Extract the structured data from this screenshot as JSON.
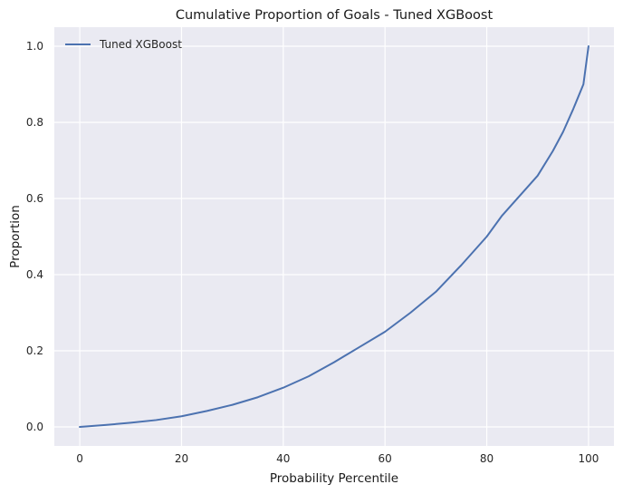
{
  "chart_data": {
    "type": "line",
    "title": "Cumulative Proportion of Goals - Tuned XGBoost",
    "xlabel": "Probability Percentile",
    "ylabel": "Proportion",
    "xlim": [
      -5,
      105
    ],
    "ylim": [
      -0.05,
      1.05
    ],
    "xticks": [
      0,
      20,
      40,
      60,
      80,
      100
    ],
    "yticks": [
      0.0,
      0.2,
      0.4,
      0.6,
      0.8,
      1.0
    ],
    "xtick_labels": [
      "0",
      "20",
      "40",
      "60",
      "80",
      "100"
    ],
    "ytick_labels": [
      "0.0",
      "0.2",
      "0.4",
      "0.6",
      "0.8",
      "1.0"
    ],
    "grid": true,
    "legend_position": "top-left",
    "series": [
      {
        "name": "Tuned XGBoost",
        "color": "#4c72b0",
        "x": [
          0,
          5,
          10,
          15,
          20,
          25,
          30,
          35,
          40,
          45,
          50,
          55,
          60,
          65,
          70,
          75,
          80,
          83,
          85,
          88,
          90,
          93,
          95,
          97,
          99,
          100
        ],
        "y": [
          0.0,
          0.005,
          0.011,
          0.018,
          0.028,
          0.042,
          0.058,
          0.078,
          0.103,
          0.133,
          0.17,
          0.21,
          0.25,
          0.3,
          0.355,
          0.425,
          0.5,
          0.555,
          0.585,
          0.63,
          0.66,
          0.725,
          0.775,
          0.835,
          0.9,
          1.0
        ]
      }
    ]
  }
}
